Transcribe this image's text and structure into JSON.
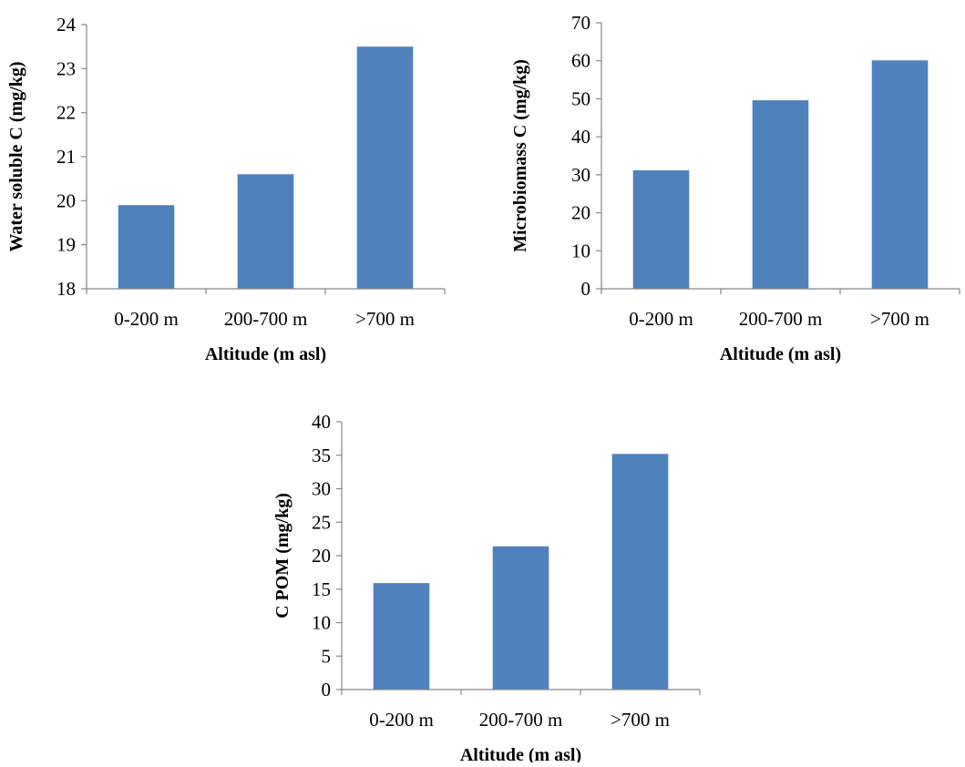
{
  "colors": {
    "bar": "#4f81bd",
    "axis": "#868686"
  },
  "chart_data": [
    {
      "type": "bar",
      "categories": [
        "0-200 m",
        "200-700 m",
        ">700 m"
      ],
      "values": [
        19.9,
        20.6,
        23.5
      ],
      "xlabel": "Altitude (m asl)",
      "ylabel": "Water soluble C (mg/kg)",
      "ylim": [
        18,
        24
      ],
      "yticks": [
        18,
        19,
        20,
        21,
        22,
        23,
        24
      ],
      "grid": false,
      "legend": "none"
    },
    {
      "type": "bar",
      "categories": [
        "0-200 m",
        "200-700 m",
        ">700 m"
      ],
      "values": [
        31.2,
        49.6,
        60.1
      ],
      "xlabel": "Altitude (m asl)",
      "ylabel": "Microbiomass C (mg/kg)",
      "ylim": [
        0,
        70
      ],
      "yticks": [
        0,
        10,
        20,
        30,
        40,
        50,
        60,
        70
      ],
      "grid": false,
      "legend": "none"
    },
    {
      "type": "bar",
      "categories": [
        "0-200 m",
        "200-700 m",
        ">700 m"
      ],
      "values": [
        15.9,
        21.4,
        35.2
      ],
      "xlabel": "Altitude (m asl)",
      "ylabel": "C  POM (mg/kg)",
      "ylim": [
        0,
        40
      ],
      "yticks": [
        0,
        5,
        10,
        15,
        20,
        25,
        30,
        35,
        40
      ],
      "grid": false,
      "legend": "none"
    }
  ]
}
